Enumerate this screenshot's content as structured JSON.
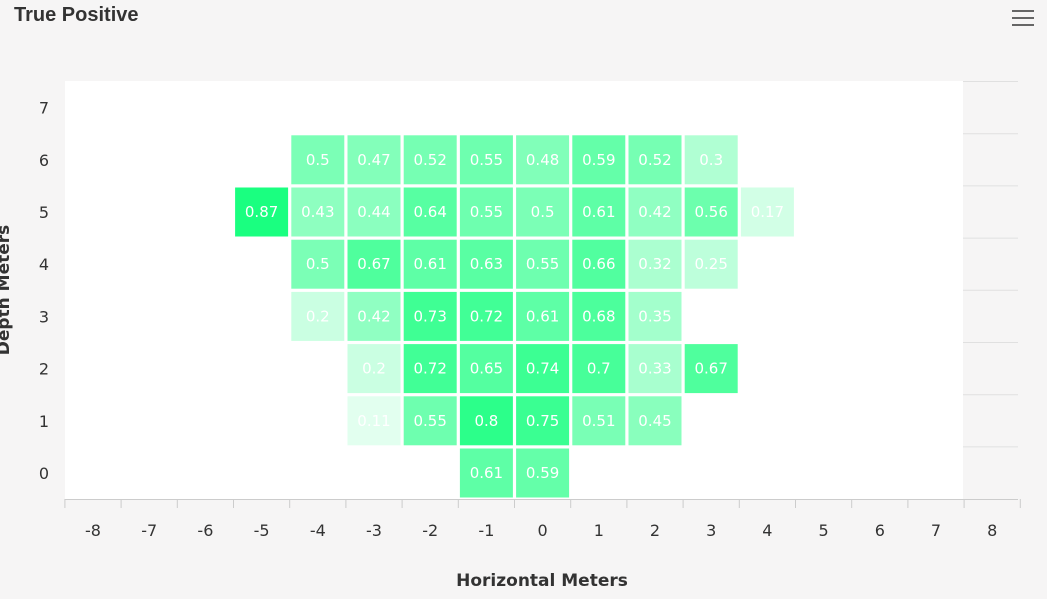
{
  "header": {
    "title": "True Positive",
    "menu_icon": "hamburger-menu-icon"
  },
  "chart_data": {
    "type": "heatmap",
    "title": "True Positive",
    "xlabel": "Horizontal Meters",
    "ylabel": "Depth Meters",
    "x_ticks": [
      -8,
      -7,
      -6,
      -5,
      -4,
      -3,
      -2,
      -1,
      0,
      1,
      2,
      3,
      4,
      5,
      6,
      7,
      8
    ],
    "y_ticks": [
      0,
      1,
      2,
      3,
      4,
      5,
      6,
      7
    ],
    "xlim": [
      -8,
      8
    ],
    "ylim": [
      0,
      7
    ],
    "color_min": "#ffffff",
    "color_max": "#1aff80",
    "cells": [
      {
        "x": -4,
        "y": 6,
        "value": 0.5
      },
      {
        "x": -3,
        "y": 6,
        "value": 0.47
      },
      {
        "x": -2,
        "y": 6,
        "value": 0.52
      },
      {
        "x": -1,
        "y": 6,
        "value": 0.55
      },
      {
        "x": 0,
        "y": 6,
        "value": 0.48
      },
      {
        "x": 1,
        "y": 6,
        "value": 0.59
      },
      {
        "x": 2,
        "y": 6,
        "value": 0.52
      },
      {
        "x": 3,
        "y": 6,
        "value": 0.3
      },
      {
        "x": -5,
        "y": 5,
        "value": 0.87
      },
      {
        "x": -4,
        "y": 5,
        "value": 0.43
      },
      {
        "x": -3,
        "y": 5,
        "value": 0.44
      },
      {
        "x": -2,
        "y": 5,
        "value": 0.64
      },
      {
        "x": -1,
        "y": 5,
        "value": 0.55
      },
      {
        "x": 0,
        "y": 5,
        "value": 0.5
      },
      {
        "x": 1,
        "y": 5,
        "value": 0.61
      },
      {
        "x": 2,
        "y": 5,
        "value": 0.42
      },
      {
        "x": 3,
        "y": 5,
        "value": 0.56
      },
      {
        "x": 4,
        "y": 5,
        "value": 0.17
      },
      {
        "x": -4,
        "y": 4,
        "value": 0.5
      },
      {
        "x": -3,
        "y": 4,
        "value": 0.67
      },
      {
        "x": -2,
        "y": 4,
        "value": 0.61
      },
      {
        "x": -1,
        "y": 4,
        "value": 0.63
      },
      {
        "x": 0,
        "y": 4,
        "value": 0.55
      },
      {
        "x": 1,
        "y": 4,
        "value": 0.66
      },
      {
        "x": 2,
        "y": 4,
        "value": 0.32
      },
      {
        "x": 3,
        "y": 4,
        "value": 0.25
      },
      {
        "x": -4,
        "y": 3,
        "value": 0.2
      },
      {
        "x": -3,
        "y": 3,
        "value": 0.42
      },
      {
        "x": -2,
        "y": 3,
        "value": 0.73
      },
      {
        "x": -1,
        "y": 3,
        "value": 0.72
      },
      {
        "x": 0,
        "y": 3,
        "value": 0.61
      },
      {
        "x": 1,
        "y": 3,
        "value": 0.68
      },
      {
        "x": 2,
        "y": 3,
        "value": 0.35
      },
      {
        "x": -3,
        "y": 2,
        "value": 0.2
      },
      {
        "x": -2,
        "y": 2,
        "value": 0.72
      },
      {
        "x": -1,
        "y": 2,
        "value": 0.65
      },
      {
        "x": 0,
        "y": 2,
        "value": 0.74
      },
      {
        "x": 1,
        "y": 2,
        "value": 0.7
      },
      {
        "x": 2,
        "y": 2,
        "value": 0.33
      },
      {
        "x": 3,
        "y": 2,
        "value": 0.67
      },
      {
        "x": -3,
        "y": 1,
        "value": 0.11
      },
      {
        "x": -2,
        "y": 1,
        "value": 0.55
      },
      {
        "x": -1,
        "y": 1,
        "value": 0.8
      },
      {
        "x": 0,
        "y": 1,
        "value": 0.75
      },
      {
        "x": 1,
        "y": 1,
        "value": 0.51
      },
      {
        "x": 2,
        "y": 1,
        "value": 0.45
      },
      {
        "x": -1,
        "y": 0,
        "value": 0.61
      },
      {
        "x": 0,
        "y": 0,
        "value": 0.59
      }
    ]
  }
}
